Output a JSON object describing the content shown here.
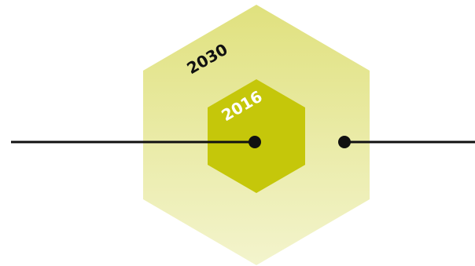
{
  "diagram": {
    "outer_hexagon": {
      "label": "2030",
      "label_color": "#111111",
      "fill_top": "#e0e17e",
      "fill_bottom": "#f3f4cd"
    },
    "inner_hexagon": {
      "label": "2016",
      "label_color": "#ffffff",
      "fill": "#c5c70a"
    },
    "line_color": "#111111",
    "dot_color": "#111111"
  }
}
